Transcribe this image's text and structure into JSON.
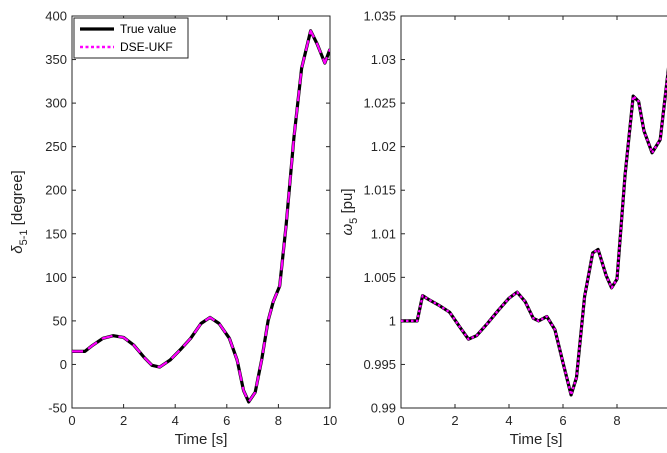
{
  "chart_data": [
    {
      "type": "line",
      "xlabel": "Time [s]",
      "ylabel_main": "δ",
      "ylabel_sub": "5-1",
      "ylabel_rest": " [degree]",
      "xlim": [
        0,
        10
      ],
      "ylim": [
        -50,
        400
      ],
      "xticks": [
        "0",
        "2",
        "4",
        "6",
        "8",
        "10"
      ],
      "yticks": [
        "-50",
        "0",
        "50",
        "100",
        "150",
        "200",
        "250",
        "300",
        "350",
        "400"
      ],
      "grid": false,
      "legend_position": "top-left",
      "series": [
        {
          "name": "True value",
          "color": "#000000",
          "style": "solid",
          "points": [
            [
              0,
              15
            ],
            [
              0.5,
              15
            ],
            [
              0.8,
              22
            ],
            [
              1.2,
              30
            ],
            [
              1.6,
              33
            ],
            [
              2.0,
              31
            ],
            [
              2.4,
              22
            ],
            [
              2.8,
              8
            ],
            [
              3.1,
              -1
            ],
            [
              3.4,
              -3
            ],
            [
              3.8,
              5
            ],
            [
              4.2,
              17
            ],
            [
              4.6,
              30
            ],
            [
              5.0,
              47
            ],
            [
              5.35,
              54
            ],
            [
              5.7,
              47
            ],
            [
              6.1,
              30
            ],
            [
              6.4,
              5
            ],
            [
              6.65,
              -30
            ],
            [
              6.85,
              -43
            ],
            [
              7.1,
              -32
            ],
            [
              7.35,
              5
            ],
            [
              7.6,
              50
            ],
            [
              7.8,
              72
            ],
            [
              8.05,
              90
            ],
            [
              8.3,
              160
            ],
            [
              8.6,
              260
            ],
            [
              8.9,
              340
            ],
            [
              9.25,
              383
            ],
            [
              9.5,
              368
            ],
            [
              9.8,
              346
            ],
            [
              10,
              362
            ]
          ]
        },
        {
          "name": "DSE-UKF",
          "color": "#ff00ff",
          "style": "dashed",
          "points": [
            [
              0,
              15
            ],
            [
              0.5,
              15
            ],
            [
              0.8,
              22
            ],
            [
              1.2,
              30
            ],
            [
              1.6,
              33
            ],
            [
              2.0,
              31
            ],
            [
              2.4,
              22
            ],
            [
              2.8,
              8
            ],
            [
              3.1,
              -1
            ],
            [
              3.4,
              -3
            ],
            [
              3.8,
              5
            ],
            [
              4.2,
              17
            ],
            [
              4.6,
              30
            ],
            [
              5.0,
              47
            ],
            [
              5.35,
              54
            ],
            [
              5.7,
              47
            ],
            [
              6.1,
              30
            ],
            [
              6.4,
              5
            ],
            [
              6.65,
              -30
            ],
            [
              6.85,
              -43
            ],
            [
              7.1,
              -32
            ],
            [
              7.35,
              5
            ],
            [
              7.6,
              50
            ],
            [
              7.8,
              72
            ],
            [
              8.05,
              90
            ],
            [
              8.3,
              160
            ],
            [
              8.6,
              260
            ],
            [
              8.9,
              340
            ],
            [
              9.25,
              383
            ],
            [
              9.5,
              368
            ],
            [
              9.8,
              346
            ],
            [
              10,
              362
            ]
          ]
        }
      ]
    },
    {
      "type": "line",
      "xlabel": "Time [s]",
      "ylabel_main": "ω",
      "ylabel_sub": "5",
      "ylabel_rest": " [pu]",
      "xlim": [
        0,
        10
      ],
      "ylim": [
        0.99,
        1.035
      ],
      "xticks": [
        "0",
        "2",
        "4",
        "6",
        "8"
      ],
      "yticks": [
        "0.99",
        "0.995",
        "1",
        "1.005",
        "1.01",
        "1.015",
        "1.02",
        "1.025",
        "1.03",
        "1.035"
      ],
      "grid": false,
      "series": [
        {
          "color": "#000000",
          "style": "solid",
          "points": [
            [
              0,
              1.0
            ],
            [
              0.5,
              1.0
            ],
            [
              0.6,
              1.0
            ],
            [
              0.8,
              1.0029
            ],
            [
              1.0,
              1.0025
            ],
            [
              1.4,
              1.0018
            ],
            [
              1.8,
              1.001
            ],
            [
              2.2,
              0.9992
            ],
            [
              2.5,
              0.9979
            ],
            [
              2.8,
              0.9983
            ],
            [
              3.2,
              0.9997
            ],
            [
              3.6,
              1.0012
            ],
            [
              4.0,
              1.0026
            ],
            [
              4.3,
              1.0033
            ],
            [
              4.6,
              1.0022
            ],
            [
              4.9,
              1.0003
            ],
            [
              5.1,
              1.0
            ],
            [
              5.4,
              1.0005
            ],
            [
              5.7,
              0.999
            ],
            [
              6.0,
              0.9952
            ],
            [
              6.3,
              0.9915
            ],
            [
              6.5,
              0.9935
            ],
            [
              6.8,
              1.0028
            ],
            [
              7.1,
              1.0078
            ],
            [
              7.3,
              1.0082
            ],
            [
              7.6,
              1.0052
            ],
            [
              7.8,
              1.0038
            ],
            [
              8.0,
              1.0048
            ],
            [
              8.3,
              1.0168
            ],
            [
              8.6,
              1.0258
            ],
            [
              8.8,
              1.0252
            ],
            [
              9.0,
              1.0218
            ],
            [
              9.3,
              1.0193
            ],
            [
              9.6,
              1.0208
            ],
            [
              10.0,
              1.0315
            ]
          ]
        },
        {
          "color": "#ff00ff",
          "style": "dotted",
          "points": [
            [
              0,
              1.0
            ],
            [
              0.5,
              1.0
            ],
            [
              0.6,
              1.0
            ],
            [
              0.8,
              1.0029
            ],
            [
              1.0,
              1.0025
            ],
            [
              1.4,
              1.0018
            ],
            [
              1.8,
              1.001
            ],
            [
              2.2,
              0.9992
            ],
            [
              2.5,
              0.9979
            ],
            [
              2.8,
              0.9983
            ],
            [
              3.2,
              0.9997
            ],
            [
              3.6,
              1.0012
            ],
            [
              4.0,
              1.0026
            ],
            [
              4.3,
              1.0033
            ],
            [
              4.6,
              1.0022
            ],
            [
              4.9,
              1.0003
            ],
            [
              5.1,
              1.0
            ],
            [
              5.4,
              1.0005
            ],
            [
              5.7,
              0.999
            ],
            [
              6.0,
              0.9952
            ],
            [
              6.3,
              0.9915
            ],
            [
              6.5,
              0.9935
            ],
            [
              6.8,
              1.0028
            ],
            [
              7.1,
              1.0078
            ],
            [
              7.3,
              1.0082
            ],
            [
              7.6,
              1.0052
            ],
            [
              7.8,
              1.0038
            ],
            [
              8.0,
              1.0048
            ],
            [
              8.3,
              1.0168
            ],
            [
              8.6,
              1.0258
            ],
            [
              8.8,
              1.0252
            ],
            [
              9.0,
              1.0218
            ],
            [
              9.3,
              1.0193
            ],
            [
              9.6,
              1.0208
            ],
            [
              10.0,
              1.0315
            ]
          ]
        }
      ]
    }
  ]
}
